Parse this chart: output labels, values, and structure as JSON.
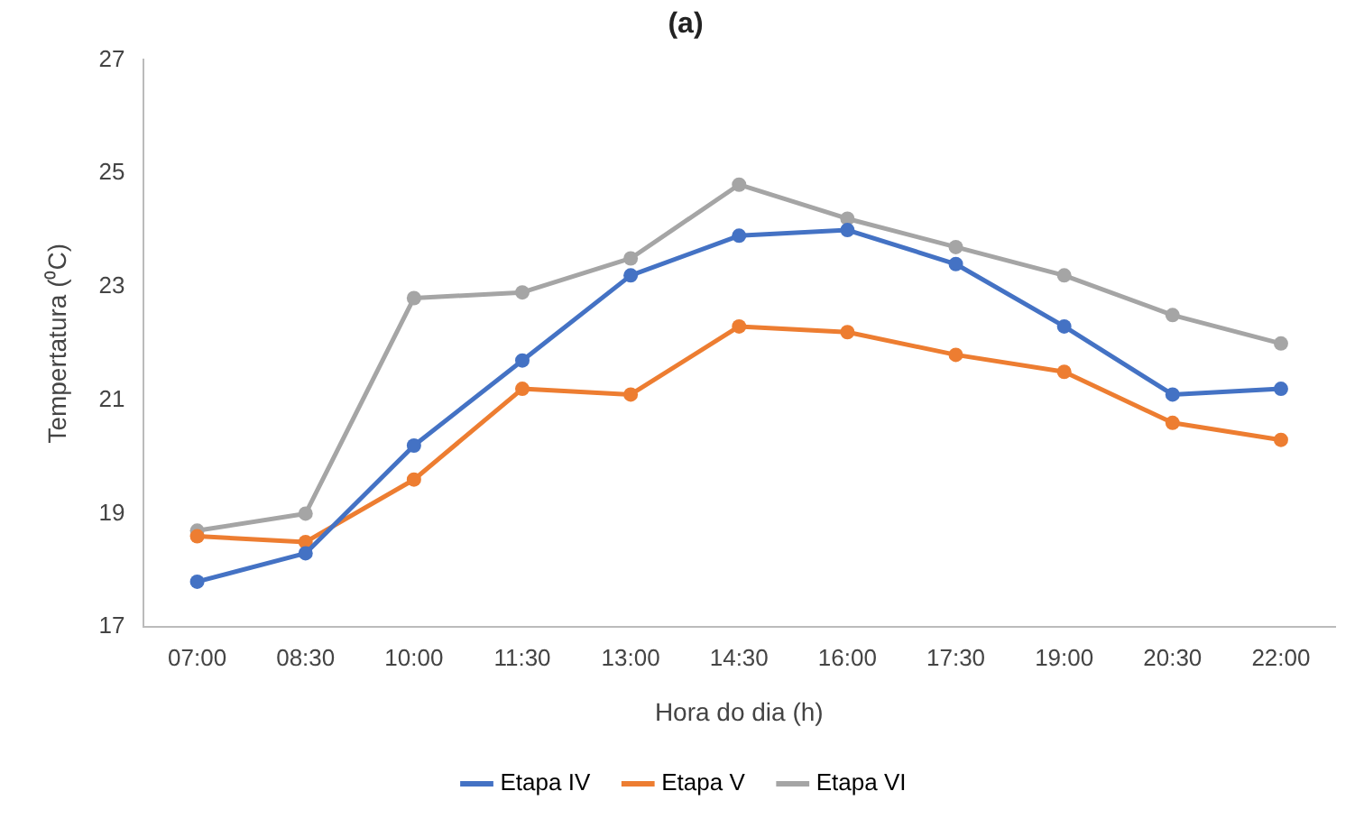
{
  "chart_data": {
    "type": "line",
    "title": "(a)",
    "xlabel": "Hora do dia (h)",
    "ylabel": "Tempertatura (⁰C)",
    "categories": [
      "07:00",
      "08:30",
      "10:00",
      "11:30",
      "13:00",
      "14:30",
      "16:00",
      "17:30",
      "19:00",
      "20:30",
      "22:00"
    ],
    "series": [
      {
        "name": "Etapa IV",
        "color": "#4472c4",
        "values": [
          17.8,
          18.3,
          20.2,
          21.7,
          23.2,
          23.9,
          24.0,
          23.4,
          22.3,
          21.1,
          21.2
        ]
      },
      {
        "name": "Etapa V",
        "color": "#ed7d31",
        "values": [
          18.6,
          18.5,
          19.6,
          21.2,
          21.1,
          22.3,
          22.2,
          21.8,
          21.5,
          20.6,
          20.3
        ]
      },
      {
        "name": "Etapa VI",
        "color": "#a5a5a5",
        "values": [
          18.7,
          19.0,
          22.8,
          22.9,
          23.5,
          24.8,
          24.2,
          23.7,
          23.2,
          22.5,
          22.0
        ]
      }
    ],
    "ylim": [
      17,
      27
    ],
    "yticks": [
      17,
      19,
      21,
      23,
      25,
      27
    ],
    "grid": false,
    "legend": "bottom",
    "marker": "circle",
    "line_style": "solid"
  }
}
